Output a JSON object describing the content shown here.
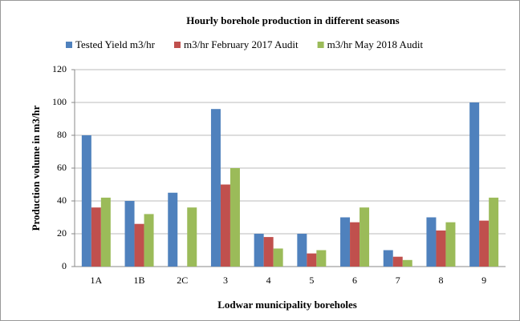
{
  "chart_data": {
    "type": "bar",
    "title": "Hourly borehole production in different seasons",
    "x_label": "Lodwar municipality boreholes",
    "y_label": "Production volume in m3/hr",
    "categories": [
      "1A",
      "1B",
      "2C",
      "3",
      "4",
      "5",
      "6",
      "7",
      "8",
      "9"
    ],
    "series": [
      {
        "name": "Tested Yield m3/hr",
        "color": "#4f81bd",
        "values": [
          80,
          40,
          45,
          96,
          20,
          20,
          30,
          10,
          30,
          100
        ]
      },
      {
        "name": "m3/hr February 2017 Audit",
        "color": "#c0504d",
        "values": [
          36,
          26,
          null,
          50,
          18,
          8,
          27,
          6,
          22,
          28
        ]
      },
      {
        "name": "m3/hr May 2018 Audit",
        "color": "#9bbb59",
        "values": [
          42,
          32,
          36,
          60,
          11,
          10,
          36,
          4,
          27,
          42
        ]
      }
    ],
    "ylim": [
      0,
      120
    ],
    "yticks": [
      0,
      20,
      40,
      60,
      80,
      100,
      120
    ],
    "grid": true,
    "legend": "top"
  }
}
